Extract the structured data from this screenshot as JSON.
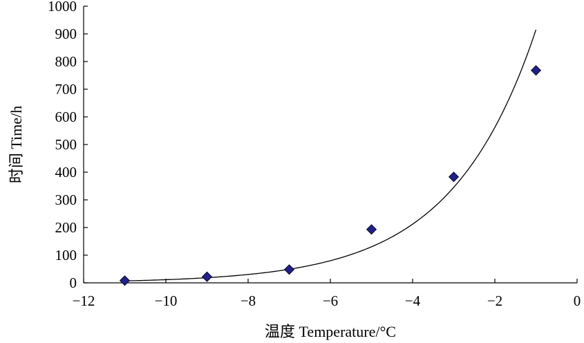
{
  "chart_data": {
    "type": "scatter",
    "xlabel": "温度 Temperature/°C",
    "ylabel": "时间 Time/h",
    "xlim": [
      -12,
      0
    ],
    "ylim": [
      0,
      1000
    ],
    "x_ticks": [
      -12,
      -10,
      -8,
      -6,
      -4,
      -2,
      0
    ],
    "y_ticks": [
      0,
      100,
      200,
      300,
      400,
      500,
      600,
      700,
      800,
      900,
      1000
    ],
    "x_tick_labels": [
      "−12",
      "−10",
      "−8",
      "−6",
      "−4",
      "−2",
      "0"
    ],
    "y_tick_labels": [
      "0",
      "100",
      "200",
      "300",
      "400",
      "500",
      "600",
      "700",
      "800",
      "900",
      "1000"
    ],
    "grid": false,
    "legend": "none",
    "series": [
      {
        "type": "scatter",
        "marker": "diamond",
        "color": "#1f1f8f",
        "x": [
          -11,
          -9,
          -7,
          -5,
          -3,
          -1
        ],
        "y": [
          8,
          22,
          48,
          193,
          383,
          768
        ]
      }
    ],
    "trendline": {
      "type": "exponential",
      "color": "#000000",
      "x_range": [
        -11,
        -1
      ],
      "y_at_start": 7,
      "y_at_end": 915
    }
  }
}
